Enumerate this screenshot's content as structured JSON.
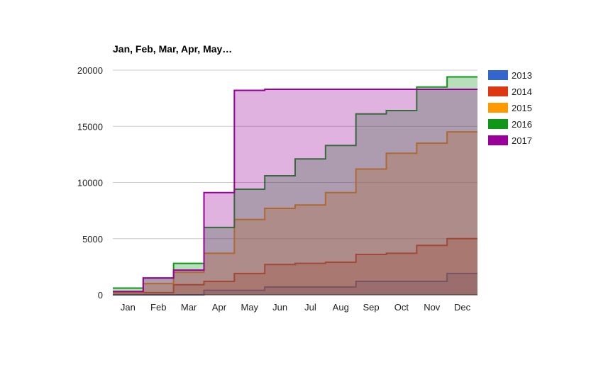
{
  "chart_data": {
    "type": "area",
    "subtype": "stepped-area",
    "title": "Jan, Feb, Mar, Apr, May…",
    "categories": [
      "Jan",
      "Feb",
      "Mar",
      "Apr",
      "May",
      "Jun",
      "Jul",
      "Aug",
      "Sep",
      "Oct",
      "Nov",
      "Dec"
    ],
    "ylim": [
      0,
      20000
    ],
    "yticks": [
      "0",
      "5000",
      "10000",
      "15000",
      "20000"
    ],
    "grid": true,
    "legend_position": "right",
    "series": [
      {
        "name": "2013",
        "color": "#3366cc",
        "values": [
          0,
          0,
          0,
          400,
          400,
          700,
          700,
          700,
          1200,
          1200,
          1200,
          1900
        ]
      },
      {
        "name": "2014",
        "color": "#dc3912",
        "values": [
          200,
          200,
          900,
          1200,
          1900,
          2700,
          2800,
          2900,
          3600,
          3700,
          4400,
          5000
        ]
      },
      {
        "name": "2015",
        "color": "#ff9900",
        "values": [
          200,
          1000,
          2000,
          3700,
          6700,
          7700,
          8000,
          9100,
          11200,
          12600,
          13500,
          14500
        ]
      },
      {
        "name": "2016",
        "color": "#109618",
        "values": [
          600,
          1500,
          2800,
          6000,
          9400,
          10600,
          12100,
          13300,
          16100,
          16400,
          18500,
          19400
        ]
      },
      {
        "name": "2017",
        "color": "#990099",
        "values": [
          300,
          1500,
          2200,
          9100,
          18200,
          18300,
          18300,
          18300,
          18300,
          18300,
          18300,
          18300
        ]
      }
    ]
  }
}
